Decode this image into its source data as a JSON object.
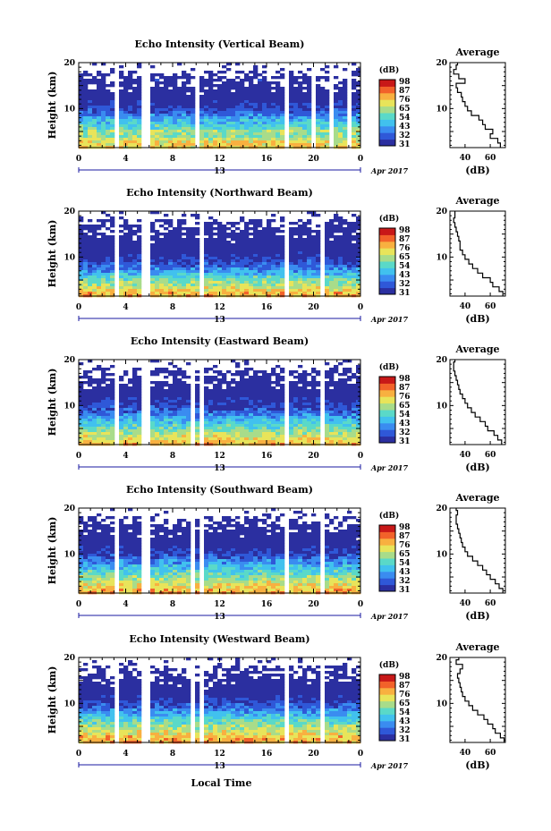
{
  "figure": {
    "date_label": "Apr 2017",
    "xlabel": "Local Time",
    "ylabel": "Height (km)",
    "colorbar_label": "(dB)",
    "colorbar_ticks": [
      "31",
      "32",
      "43",
      "54",
      "65",
      "76",
      "87",
      "98"
    ],
    "colorbar_colors": [
      "#2b2fa0",
      "#2f58d8",
      "#3a8cf0",
      "#41c1ee",
      "#5ad9c8",
      "#a8dc8a",
      "#e8e45a",
      "#f8b040",
      "#f2622a",
      "#c81818"
    ],
    "average_title": "Average",
    "average_xlabel": "(dB)"
  },
  "chart_data": [
    {
      "type": "heatmap",
      "title": "Echo Intensity (Vertical Beam)",
      "xlabel": "Local Time",
      "ylabel": "Height (km)",
      "x_ticks": [
        "0",
        "4",
        "8",
        "12",
        "16",
        "20",
        "0"
      ],
      "x_sub_label": "13",
      "xlim": [
        0,
        24
      ],
      "ylim": [
        1.5,
        20
      ],
      "y_ticks": [
        "10",
        "20"
      ],
      "gaps_hours": [
        [
          3.0,
          3.5
        ],
        [
          5.5,
          6.0
        ],
        [
          9.8,
          10.2
        ],
        [
          17.5,
          18.0
        ],
        [
          19.7,
          20.0
        ],
        [
          21.5,
          21.7
        ],
        [
          23.0,
          23.2
        ]
      ],
      "color_range_db": [
        31,
        98
      ],
      "average_profile": {
        "title": "Average",
        "xlabel": "(dB)",
        "x_ticks": [
          "40",
          "60"
        ],
        "y_ticks": [
          "10",
          "20"
        ],
        "xlim": [
          28,
          72
        ],
        "height_km": [
          2,
          3,
          4,
          5,
          6,
          7,
          8,
          9,
          10,
          11,
          12,
          13,
          14,
          15,
          16,
          17,
          18,
          19,
          20
        ],
        "db": [
          68,
          66,
          60,
          62,
          56,
          54,
          51,
          45,
          42,
          40,
          38,
          37,
          34,
          33,
          40,
          35,
          31,
          33,
          34
        ]
      }
    },
    {
      "type": "heatmap",
      "title": "Echo Intensity (Northward Beam)",
      "xlabel": "Local Time",
      "ylabel": "Height (km)",
      "x_ticks": [
        "0",
        "4",
        "8",
        "12",
        "16",
        "20",
        "0"
      ],
      "x_sub_label": "13",
      "xlim": [
        0,
        24
      ],
      "ylim": [
        1.5,
        20
      ],
      "y_ticks": [
        "10",
        "20"
      ],
      "gaps_hours": [
        [
          3.0,
          3.5
        ],
        [
          5.5,
          6.0
        ],
        [
          9.0,
          9.3
        ],
        [
          10.4,
          10.8
        ],
        [
          17.5,
          18.0
        ],
        [
          20.5,
          20.8
        ],
        [
          22.8,
          23.0
        ]
      ],
      "color_range_db": [
        31,
        98
      ],
      "average_profile": {
        "title": "Average",
        "xlabel": "(dB)",
        "x_ticks": [
          "40",
          "60"
        ],
        "y_ticks": [
          "10",
          "20"
        ],
        "xlim": [
          28,
          72
        ],
        "height_km": [
          2,
          3,
          4,
          5,
          6,
          7,
          8,
          9,
          10,
          11,
          12,
          13,
          14,
          15,
          16,
          17,
          18,
          19,
          20
        ],
        "db": [
          70,
          67,
          62,
          60,
          54,
          50,
          46,
          43,
          40,
          38,
          36,
          36,
          35,
          34,
          33,
          32,
          31,
          32,
          32
        ]
      }
    },
    {
      "type": "heatmap",
      "title": "Echo Intensity (Eastward Beam)",
      "xlabel": "Local Time",
      "ylabel": "Height (km)",
      "x_ticks": [
        "0",
        "4",
        "8",
        "12",
        "16",
        "20",
        "0"
      ],
      "x_sub_label": "13",
      "xlim": [
        0,
        24
      ],
      "ylim": [
        1.5,
        20
      ],
      "y_ticks": [
        "10",
        "20"
      ],
      "gaps_hours": [
        [
          3.0,
          3.5
        ],
        [
          5.5,
          6.0
        ],
        [
          9.5,
          9.9
        ],
        [
          10.3,
          10.6
        ],
        [
          17.5,
          18.0
        ],
        [
          20.6,
          20.9
        ],
        [
          22.4,
          22.6
        ]
      ],
      "color_range_db": [
        31,
        98
      ],
      "average_profile": {
        "title": "Average",
        "xlabel": "(dB)",
        "x_ticks": [
          "40",
          "60"
        ],
        "y_ticks": [
          "10",
          "20"
        ],
        "xlim": [
          28,
          72
        ],
        "height_km": [
          2,
          3,
          4,
          5,
          6,
          7,
          8,
          9,
          10,
          11,
          12,
          13,
          14,
          15,
          16,
          17,
          18,
          19,
          20
        ],
        "db": [
          69,
          66,
          63,
          58,
          56,
          52,
          48,
          45,
          42,
          40,
          38,
          36,
          35,
          34,
          33,
          32,
          31,
          31,
          32
        ]
      }
    },
    {
      "type": "heatmap",
      "title": "Echo Intensity (Southward Beam)",
      "xlabel": "Local Time",
      "ylabel": "Height (km)",
      "x_ticks": [
        "0",
        "4",
        "8",
        "12",
        "16",
        "20",
        "0"
      ],
      "x_sub_label": "13",
      "xlim": [
        0,
        24
      ],
      "ylim": [
        1.5,
        20
      ],
      "y_ticks": [
        "10",
        "20"
      ],
      "gaps_hours": [
        [
          3.0,
          3.5
        ],
        [
          5.5,
          6.0
        ],
        [
          9.5,
          9.9
        ],
        [
          10.2,
          10.5
        ],
        [
          17.5,
          18.0
        ],
        [
          20.6,
          20.9
        ],
        [
          22.4,
          22.6
        ]
      ],
      "color_range_db": [
        31,
        98
      ],
      "average_profile": {
        "title": "Average",
        "xlabel": "(dB)",
        "x_ticks": [
          "40",
          "60"
        ],
        "y_ticks": [
          "10",
          "20"
        ],
        "xlim": [
          28,
          72
        ],
        "height_km": [
          2,
          3,
          4,
          5,
          6,
          7,
          8,
          9,
          10,
          11,
          12,
          13,
          14,
          15,
          16,
          17,
          18,
          19,
          20
        ],
        "db": [
          70,
          67,
          64,
          60,
          57,
          54,
          50,
          46,
          42,
          40,
          38,
          37,
          36,
          35,
          34,
          33,
          33,
          34,
          33
        ]
      }
    },
    {
      "type": "heatmap",
      "title": "Echo Intensity (Westward Beam)",
      "xlabel": "Local Time",
      "ylabel": "Height (km)",
      "x_ticks": [
        "0",
        "4",
        "8",
        "12",
        "16",
        "20",
        "0"
      ],
      "x_sub_label": "13",
      "xlim": [
        0,
        24
      ],
      "ylim": [
        1.5,
        20
      ],
      "y_ticks": [
        "10",
        "20"
      ],
      "gaps_hours": [
        [
          3.0,
          3.5
        ],
        [
          5.5,
          6.0
        ],
        [
          9.5,
          9.9
        ],
        [
          10.3,
          10.6
        ],
        [
          17.5,
          18.0
        ],
        [
          20.6,
          20.9
        ],
        [
          22.8,
          23.0
        ]
      ],
      "color_range_db": [
        31,
        98
      ],
      "average_profile": {
        "title": "Average",
        "xlabel": "(dB)",
        "x_ticks": [
          "40",
          "60"
        ],
        "y_ticks": [
          "10",
          "20"
        ],
        "xlim": [
          28,
          72
        ],
        "height_km": [
          2,
          3,
          4,
          5,
          6,
          7,
          8,
          9,
          10,
          11,
          12,
          13,
          14,
          15,
          16,
          17,
          18,
          19,
          20
        ],
        "db": [
          71,
          68,
          64,
          62,
          58,
          55,
          50,
          46,
          43,
          40,
          38,
          37,
          36,
          35,
          34,
          36,
          38,
          33,
          35
        ]
      }
    }
  ]
}
